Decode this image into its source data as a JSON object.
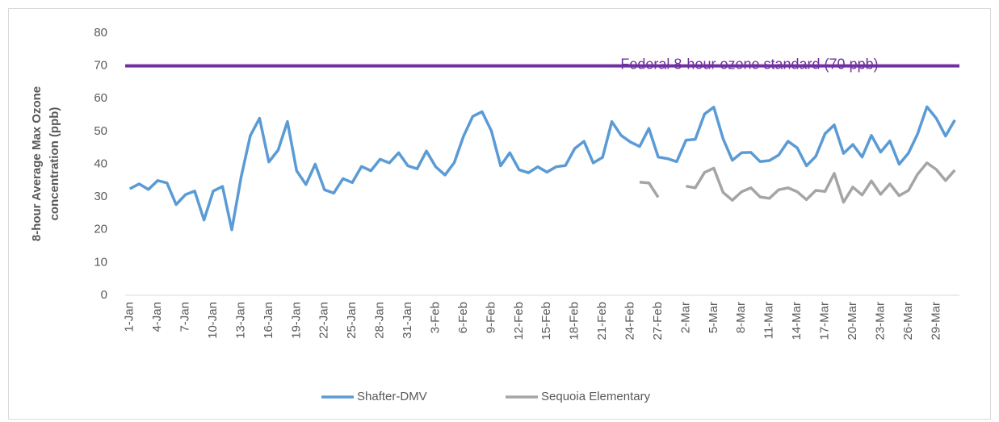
{
  "chart_data": {
    "type": "line",
    "ylabel": "8-hour Average Max Ozone concentration (ppb)",
    "categories": [
      "1-Jan",
      null,
      null,
      "4-Jan",
      null,
      null,
      "7-Jan",
      null,
      null,
      "10-Jan",
      null,
      null,
      "13-Jan",
      null,
      null,
      "16-Jan",
      null,
      null,
      "19-Jan",
      null,
      null,
      "22-Jan",
      null,
      null,
      "25-Jan",
      null,
      null,
      "28-Jan",
      null,
      null,
      "31-Jan",
      null,
      null,
      "3-Feb",
      null,
      null,
      "6-Feb",
      null,
      null,
      "9-Feb",
      null,
      null,
      "12-Feb",
      null,
      null,
      "15-Feb",
      null,
      null,
      "18-Feb",
      null,
      null,
      "21-Feb",
      null,
      null,
      "24-Feb",
      null,
      null,
      "27-Feb",
      null,
      null,
      "2-Mar",
      null,
      null,
      "5-Mar",
      null,
      null,
      "8-Mar",
      null,
      null,
      "11-Mar",
      null,
      null,
      "14-Mar",
      null,
      null,
      "17-Mar",
      null,
      null,
      "20-Mar",
      null,
      null,
      "23-Mar",
      null,
      null,
      "26-Mar",
      null,
      null,
      "29-Mar",
      null,
      null
    ],
    "series": [
      {
        "name": "Shafter-DMV",
        "color": "#5b9bd5",
        "values": [
          32.5,
          34,
          32.3,
          35,
          34.3,
          27.7,
          30.7,
          31.8,
          23,
          31.8,
          33.2,
          20,
          36,
          48.7,
          54,
          40.7,
          44.3,
          53,
          38,
          33.8,
          40,
          32.2,
          31.2,
          35.6,
          34.4,
          39.3,
          38,
          41.5,
          40.4,
          43.5,
          39.5,
          38.6,
          44,
          39.2,
          36.7,
          40.5,
          48.5,
          54.6,
          56,
          50.2,
          39.5,
          43.5,
          38.3,
          37.4,
          39.2,
          37.6,
          39.2,
          39.6,
          44.8,
          47,
          40.4,
          42.1,
          53,
          48.8,
          46.8,
          45.4,
          50.9,
          42.2,
          41.7,
          40.8,
          47.3,
          47.6,
          55.3,
          57.4,
          47.8,
          41.2,
          43.5,
          43.6,
          40.8,
          41.1,
          42.8,
          47,
          45,
          39.5,
          42.4,
          49.3,
          52,
          43.3,
          46,
          42.2,
          48.8,
          43.7,
          47.1,
          40,
          43.4,
          49.3,
          57.5,
          54,
          48.6,
          53.5
        ]
      },
      {
        "name": "Sequoia Elementary",
        "color": "#a5a5a5",
        "values": [
          null,
          null,
          null,
          null,
          null,
          null,
          null,
          null,
          null,
          null,
          null,
          null,
          null,
          null,
          null,
          null,
          null,
          null,
          null,
          null,
          null,
          null,
          null,
          null,
          null,
          null,
          null,
          null,
          null,
          null,
          null,
          null,
          null,
          null,
          null,
          null,
          null,
          null,
          null,
          null,
          null,
          null,
          null,
          null,
          null,
          null,
          null,
          null,
          null,
          null,
          null,
          null,
          null,
          null,
          null,
          34.5,
          34.3,
          29.9,
          null,
          null,
          33.3,
          32.8,
          37.5,
          38.8,
          31.4,
          29,
          31.6,
          32.8,
          30,
          29.6,
          32.2,
          32.8,
          31.6,
          29.2,
          32,
          31.7,
          37.2,
          28.4,
          33,
          30.6,
          34.9,
          30.8,
          34,
          30.4,
          32,
          37,
          40.4,
          38.4,
          35,
          38.2
        ]
      }
    ],
    "reference_line": {
      "value": 70,
      "label": "Federal 8-hour ozone standard (70 ppb)",
      "color": "#7030a0"
    },
    "ylim": [
      0,
      80
    ],
    "yticks": [
      0,
      10,
      20,
      30,
      40,
      50,
      60,
      70,
      80
    ],
    "legend": "bottom"
  }
}
